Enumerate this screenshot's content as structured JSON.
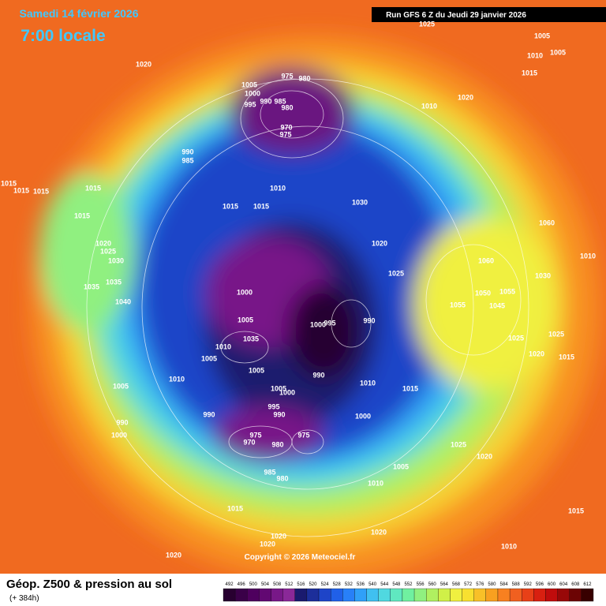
{
  "header": {
    "date": "Samedi 14 février 2026",
    "time": "7:00 locale",
    "run": "Run GFS 6 Z du Jeudi 29 janvier 2026"
  },
  "copyright": "Copyright © 2026 Meteociel.fr",
  "footer": {
    "title": "Géop. Z500 & pression au sol",
    "lead": "(+ 384h)"
  },
  "colorbar": {
    "ticks": [
      492,
      496,
      500,
      504,
      508,
      512,
      516,
      520,
      524,
      528,
      532,
      536,
      540,
      544,
      548,
      552,
      556,
      560,
      564,
      568,
      572,
      576,
      580,
      584,
      588,
      592,
      596,
      600,
      604,
      608,
      612
    ],
    "colors": [
      "#280030",
      "#3a0048",
      "#4e005e",
      "#620872",
      "#781888",
      "#8a2898",
      "#1a1a6e",
      "#1c2e9a",
      "#1e44c8",
      "#2060e8",
      "#2880f8",
      "#30a0f8",
      "#40c0f0",
      "#50d8e0",
      "#60e8c0",
      "#70f0a0",
      "#90f080",
      "#b0f060",
      "#d0f048",
      "#f0f040",
      "#f8e030",
      "#f8c028",
      "#f8a020",
      "#f88020",
      "#f06020",
      "#e84018",
      "#d82010",
      "#c00c0c",
      "#980808",
      "#6c0404",
      "#380000"
    ]
  },
  "isobar_labels": [
    1025,
    1005,
    1010,
    1005,
    1015,
    1020,
    975,
    980,
    1005,
    1000,
    995,
    990,
    985,
    980,
    1010,
    1020,
    970,
    975,
    990,
    985,
    1015,
    1015,
    1015,
    1015,
    1010,
    1015,
    1015,
    1030,
    1015,
    1020,
    1025,
    1030,
    1035,
    1035,
    1040,
    1020,
    1025,
    1060,
    1060,
    1000,
    1000,
    995,
    990,
    1005,
    1035,
    1010,
    1005,
    1005,
    1010,
    990,
    1010,
    1015,
    1005,
    1005,
    1000,
    995,
    990,
    990,
    1000,
    990,
    1000,
    975,
    970,
    980,
    975,
    985,
    980,
    1005,
    1025,
    1020,
    1010,
    1015,
    1020,
    1020,
    1020,
    1020,
    1010,
    1015,
    1055,
    1025,
    1020,
    1015,
    1025,
    1030,
    1050,
    1045,
    1055,
    1010
  ]
}
